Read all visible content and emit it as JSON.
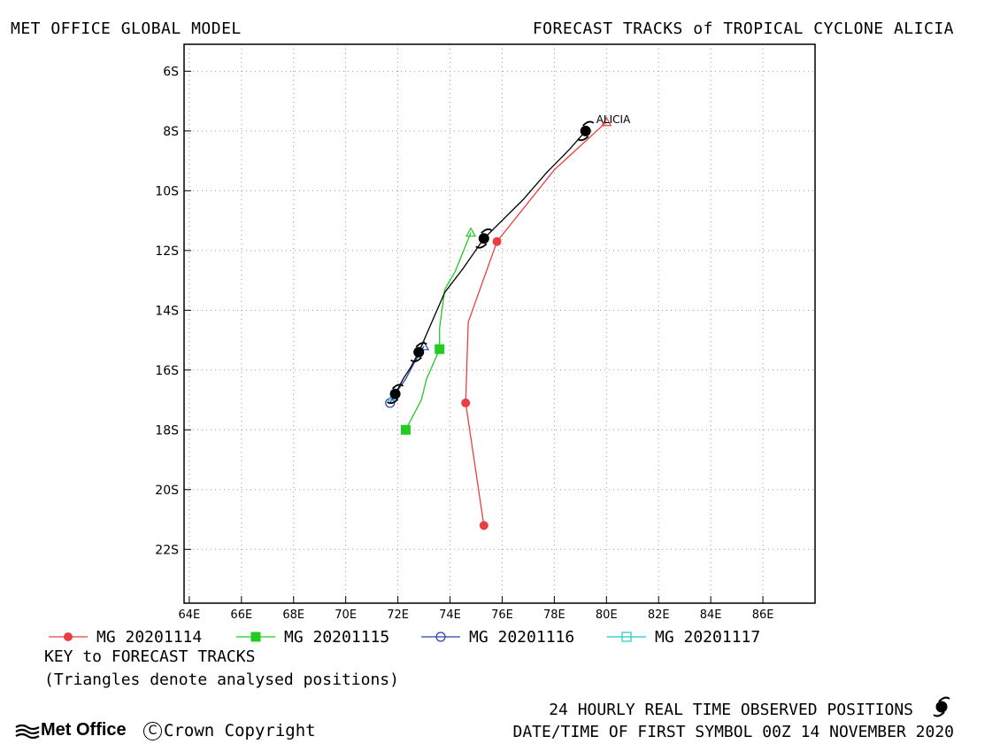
{
  "header": {
    "left": "MET OFFICE GLOBAL MODEL",
    "right": "FORECAST TRACKS of TROPICAL CYCLONE ALICIA"
  },
  "chart_data": {
    "type": "line",
    "title": "FORECAST TRACKS of TROPICAL CYCLONE ALICIA",
    "xlim": [
      63.8,
      88.0
    ],
    "ylim": [
      -5.1,
      -23.8
    ],
    "x_ticks": [
      "64E",
      "66E",
      "68E",
      "70E",
      "72E",
      "74E",
      "76E",
      "78E",
      "80E",
      "82E",
      "84E",
      "86E"
    ],
    "x_tick_values": [
      64,
      66,
      68,
      70,
      72,
      74,
      76,
      78,
      80,
      82,
      84,
      86
    ],
    "y_ticks": [
      "6S",
      "8S",
      "10S",
      "12S",
      "14S",
      "16S",
      "18S",
      "20S",
      "22S"
    ],
    "y_tick_values": [
      -6,
      -8,
      -10,
      -12,
      -14,
      -16,
      -18,
      -20,
      -22
    ],
    "grid": true,
    "storm_label": "ALICIA",
    "colors": {
      "mg_20201114": "#e84040",
      "mg_20201115": "#1fcc1f",
      "mg_20201116": "#2a3fb0",
      "mg_20201117": "#22c8c8",
      "observed": "#000000"
    },
    "series": [
      {
        "name": "MG 20201114",
        "key": "mg_20201114",
        "marker": "filled-circle",
        "path": [
          [
            80.0,
            -7.7
          ],
          [
            78.0,
            -9.3
          ],
          [
            75.8,
            -11.7
          ],
          [
            74.7,
            -14.4
          ],
          [
            74.6,
            -17.1
          ],
          [
            75.3,
            -21.2
          ]
        ],
        "markers": [
          [
            75.8,
            -11.7
          ],
          [
            74.6,
            -17.1
          ],
          [
            75.3,
            -21.2
          ]
        ],
        "analysed": [
          80.0,
          -7.7
        ]
      },
      {
        "name": "MG 20201115",
        "key": "mg_20201115",
        "marker": "filled-square",
        "path": [
          [
            74.8,
            -11.4
          ],
          [
            74.2,
            -12.7
          ],
          [
            73.8,
            -13.3
          ],
          [
            73.6,
            -14.6
          ],
          [
            73.6,
            -15.3
          ],
          [
            73.1,
            -16.3
          ],
          [
            72.9,
            -17.0
          ],
          [
            72.3,
            -18.0
          ]
        ],
        "markers": [
          [
            73.6,
            -15.3
          ],
          [
            72.3,
            -18.0
          ]
        ],
        "analysed": [
          74.8,
          -11.4
        ]
      },
      {
        "name": "MG 20201116",
        "key": "mg_20201116",
        "marker": "open-circle",
        "path": [
          [
            73.0,
            -15.2
          ],
          [
            72.6,
            -15.8
          ],
          [
            72.3,
            -16.3
          ],
          [
            71.9,
            -16.8
          ],
          [
            71.7,
            -17.1
          ]
        ],
        "markers": [
          [
            71.7,
            -17.1
          ]
        ],
        "analysed": [
          73.0,
          -15.2
        ]
      },
      {
        "name": "MG 20201117",
        "key": "mg_20201117",
        "marker": "open-square",
        "path": [
          [
            71.8,
            -16.9
          ],
          [
            71.9,
            -16.75
          ]
        ],
        "markers": [],
        "analysed": [
          71.8,
          -16.9
        ]
      }
    ],
    "observed": {
      "name": "24 HOURLY REAL TIME OBSERVED POSITIONS",
      "path": [
        [
          79.2,
          -8.0
        ],
        [
          78.6,
          -8.6
        ],
        [
          77.7,
          -9.4
        ],
        [
          76.8,
          -10.3
        ],
        [
          75.3,
          -11.6
        ],
        [
          74.5,
          -12.6
        ],
        [
          73.8,
          -13.4
        ],
        [
          73.3,
          -14.4
        ],
        [
          72.8,
          -15.4
        ],
        [
          72.5,
          -15.9
        ],
        [
          72.2,
          -16.3
        ],
        [
          71.9,
          -16.8
        ]
      ],
      "symbols": [
        [
          79.2,
          -8.0
        ],
        [
          75.3,
          -11.6
        ],
        [
          72.8,
          -15.4
        ],
        [
          71.9,
          -16.8
        ]
      ]
    }
  },
  "legend": {
    "items": [
      {
        "label": "MG 20201114",
        "key": "mg_20201114",
        "marker": "filled-circle"
      },
      {
        "label": "MG 20201115",
        "key": "mg_20201115",
        "marker": "filled-square"
      },
      {
        "label": "MG 20201116",
        "key": "mg_20201116",
        "marker": "open-circle"
      },
      {
        "label": "MG 20201117",
        "key": "mg_20201117",
        "marker": "open-square"
      }
    ],
    "title": "KEY to FORECAST TRACKS",
    "note": "(Triangles denote analysed positions)"
  },
  "footer": {
    "observed_label": "24 HOURLY REAL TIME OBSERVED POSITIONS",
    "datetime_label": "DATE/TIME OF FIRST SYMBOL 00Z 14 NOVEMBER 2020",
    "logo_text": "Met Office",
    "copyright_symbol": "C",
    "copyright_text": "Crown Copyright"
  }
}
